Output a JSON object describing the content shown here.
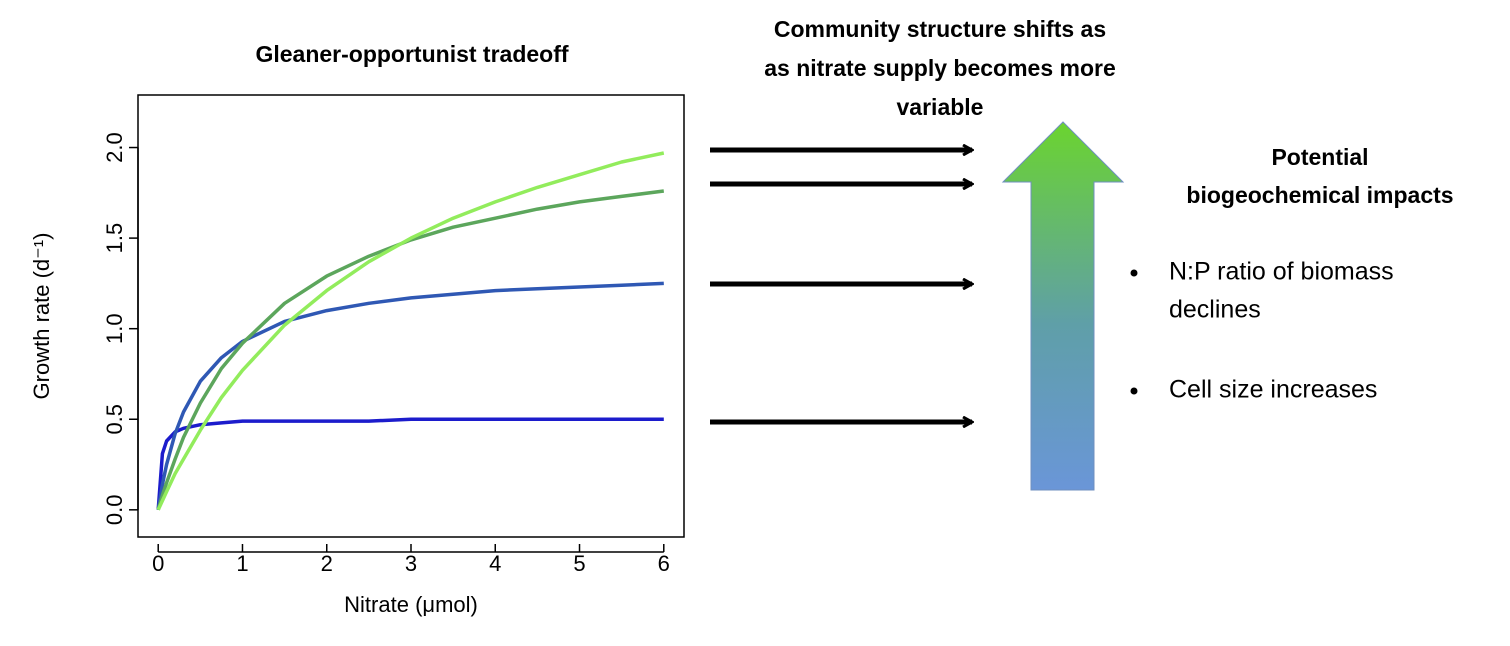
{
  "chart_data": {
    "type": "line",
    "title": "Gleaner-opportunist tradeoff",
    "xlabel": "Nitrate (μmol)",
    "ylabel": "Growth rate (d⁻¹)",
    "x": [
      0,
      0.05,
      0.1,
      0.2,
      0.3,
      0.5,
      0.75,
      1,
      1.5,
      2,
      2.5,
      3,
      3.5,
      4,
      4.5,
      5,
      5.5,
      6
    ],
    "series": [
      {
        "color": "#1c1ccc",
        "values": [
          0,
          0.31,
          0.38,
          0.43,
          0.45,
          0.47,
          0.48,
          0.49,
          0.49,
          0.49,
          0.49,
          0.5,
          0.5,
          0.5,
          0.5,
          0.5,
          0.5,
          0.5
        ]
      },
      {
        "color": "#2f58b4",
        "values": [
          0,
          0.14,
          0.25,
          0.42,
          0.54,
          0.71,
          0.84,
          0.93,
          1.04,
          1.1,
          1.14,
          1.17,
          1.19,
          1.21,
          1.22,
          1.23,
          1.24,
          1.25
        ]
      },
      {
        "color": "#5ca65c",
        "values": [
          0,
          0.08,
          0.15,
          0.28,
          0.4,
          0.59,
          0.78,
          0.92,
          1.14,
          1.29,
          1.4,
          1.49,
          1.56,
          1.61,
          1.66,
          1.7,
          1.73,
          1.76
        ]
      },
      {
        "color": "#92ec5c",
        "values": [
          0,
          0.05,
          0.1,
          0.2,
          0.28,
          0.44,
          0.62,
          0.77,
          1.02,
          1.21,
          1.37,
          1.5,
          1.61,
          1.7,
          1.78,
          1.85,
          1.92,
          1.97
        ]
      }
    ],
    "xlim": [
      -0.24,
      6.24
    ],
    "ylim": [
      -0.15,
      2.29
    ],
    "xticks": [
      0,
      1,
      2,
      3,
      4,
      5,
      6
    ],
    "yticks": [
      {
        "value": 0,
        "label": "0.0"
      },
      0.5,
      {
        "value": 1,
        "label": "1.0"
      },
      1.5,
      {
        "value": 2,
        "label": "2.0"
      }
    ],
    "annotations": {
      "shift_caption": [
        "Community structure shifts as",
        "as nitrate supply becomes more",
        "variable"
      ],
      "impacts_title": [
        "Potential",
        "biogeochemical impacts"
      ],
      "bullets": [
        [
          "N:P ratio of biomass",
          "declines"
        ],
        [
          "Cell size increases"
        ]
      ]
    }
  }
}
